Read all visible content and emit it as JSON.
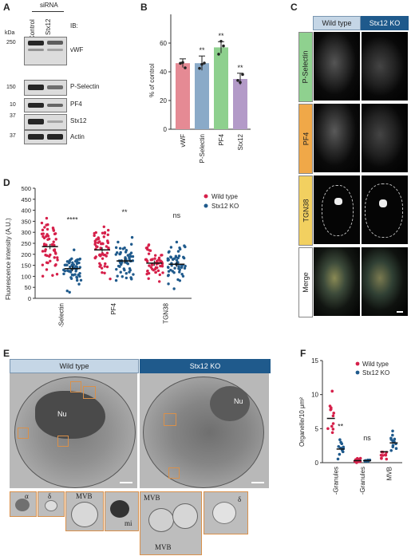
{
  "panelA": {
    "label": "A",
    "sirna": "siRNA",
    "lanes": [
      "Control",
      "Stx12"
    ],
    "ib": "IB:",
    "kda": "kDa",
    "markers": [
      "250",
      "150",
      "10",
      "37",
      "37"
    ],
    "proteins": [
      "vWF",
      "P-Selectin",
      "PF4",
      "Stx12",
      "Actin"
    ]
  },
  "panelB": {
    "label": "B",
    "ylabel": "% of control",
    "chart_data": {
      "type": "bar",
      "categories": [
        "vWF",
        "P-Selectin",
        "PF4",
        "Stx12"
      ],
      "values": [
        46,
        46,
        57,
        35
      ],
      "errors": [
        3,
        5,
        4,
        4
      ],
      "significance": [
        "",
        "**",
        "**",
        "**"
      ],
      "yticks": [
        "0",
        "20",
        "40",
        "60"
      ],
      "ylim": [
        0,
        80
      ],
      "colors": [
        "#e58a94",
        "#8aaac8",
        "#8ed08e",
        "#b39ac8"
      ]
    }
  },
  "panelC": {
    "label": "C",
    "headers": [
      "Wild type",
      "Stx12 KO"
    ],
    "rows": [
      "P-Selectin",
      "PF4",
      "TGN38",
      "Merge"
    ],
    "row_colors": [
      "#8fd18f",
      "#f0a848",
      "#f2d060",
      "#ffffff"
    ]
  },
  "panelD": {
    "label": "D",
    "ylabel": "Fluorescence intensity (A.U.)",
    "chart_data": {
      "type": "scatter",
      "categories": [
        "P-Selectin",
        "PF4",
        "TGN38"
      ],
      "series": [
        {
          "name": "Wild type",
          "color": "#d6204a",
          "means": [
            235,
            220,
            160
          ]
        },
        {
          "name": "Stx12 KO",
          "color": "#1f5a8c",
          "means": [
            135,
            170,
            155
          ]
        }
      ],
      "significance": [
        "****",
        "**",
        "ns"
      ],
      "yticks": [
        "0",
        "50",
        "100",
        "150",
        "200",
        "250",
        "300",
        "350",
        "400",
        "450",
        "500"
      ],
      "ylim": [
        0,
        500
      ]
    }
  },
  "panelE": {
    "label": "E",
    "headers": [
      "Wild type",
      "Stx12 KO"
    ],
    "nucleus": "Nu",
    "insets_wt": [
      "α",
      "δ",
      "MVB",
      "mi"
    ],
    "insets_ko": [
      "MVB",
      "MVB",
      "δ"
    ]
  },
  "panelF": {
    "label": "F",
    "ylabel": "Organelle/10 μm²",
    "chart_data": {
      "type": "scatter",
      "categories": [
        "α-Granules",
        "δ-Granules",
        "MVB"
      ],
      "series": [
        {
          "name": "Wild type",
          "color": "#d6204a",
          "means": [
            6.5,
            0.3,
            1.6
          ]
        },
        {
          "name": "Stx12 KO",
          "color": "#1f5a8c",
          "means": [
            2.0,
            0.3,
            2.9
          ]
        }
      ],
      "significance": [
        "**",
        "ns",
        ""
      ],
      "yticks": [
        "0",
        "5",
        "10",
        "15"
      ],
      "ylim": [
        0,
        15
      ]
    }
  }
}
